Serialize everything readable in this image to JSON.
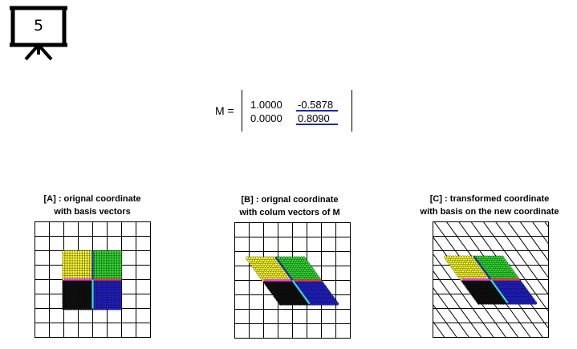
{
  "slide": {
    "number": "5"
  },
  "matrix": {
    "label": "M =",
    "rows": [
      [
        "1.0000",
        "-0.5878"
      ],
      [
        "0.0000",
        "0.8090"
      ]
    ]
  },
  "panels": [
    {
      "line1": "[A] : orignal coordinate",
      "line2": "with basis vectors"
    },
    {
      "line1": "[B] : orignal coordinate",
      "line2": "with colum vectors of M"
    },
    {
      "line1": "[C] : transformed coordinate",
      "line2": "with basis on the new coordinate"
    }
  ],
  "colors": {
    "q1": "#ffff33",
    "q2": "#33dd33",
    "q3": "#111111",
    "q4": "#2222cc",
    "axis_x": "#ff3333",
    "axis_x_left": "#ff33ff",
    "axis_y": "#2233aa",
    "axis_y_low": "#33dddd",
    "underline": "#1a2bb0"
  }
}
